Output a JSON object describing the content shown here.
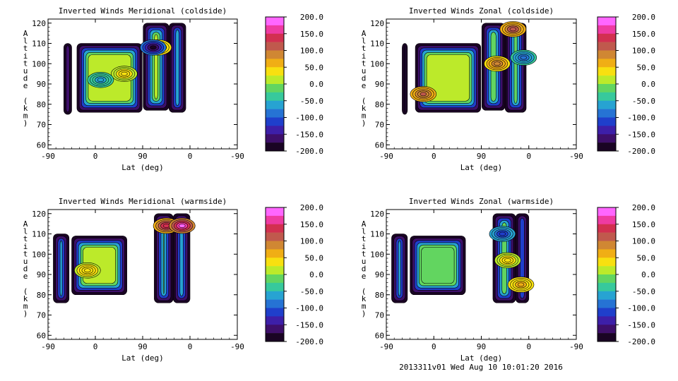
{
  "footer": "2013311v01 Wed Aug 10 10:01:20 2016",
  "colorbar": {
    "tick_labels": [
      "200.0",
      "150.0",
      "100.0",
      "50.0",
      "0.0",
      "-50.0",
      "-100.0",
      "-150.0",
      "-200.0"
    ],
    "colors_top_to_bottom": [
      "#ff66ff",
      "#ee3ba2",
      "#d23050",
      "#c0594d",
      "#d08733",
      "#f0ae15",
      "#f8e010",
      "#bcea2a",
      "#62d560",
      "#37c99c",
      "#27a3d2",
      "#2673d4",
      "#1f3fcb",
      "#3d1fa8",
      "#3e0f6a",
      "#1a0424"
    ]
  },
  "chart_data": [
    {
      "type": "heatmap",
      "title": "Inverted Winds Meridional (coldside)",
      "xlabel": "Lat (deg)",
      "ylabel": "Altitude (km)",
      "xticks": [
        "-90",
        "0",
        "90",
        "0",
        "-90"
      ],
      "yticks": [
        60,
        70,
        80,
        90,
        100,
        110,
        120
      ],
      "ylim": [
        58,
        122
      ],
      "clim": [
        -200,
        200
      ],
      "regions": [
        {
          "x": [
            -60,
            -45
          ],
          "alt": [
            75,
            110
          ],
          "mean": -190
        },
        {
          "x": [
            -35,
            89
          ],
          "alt": [
            76,
            110
          ],
          "mean": 10
        },
        {
          "x": [
            91,
            140
          ],
          "alt": [
            77,
            120
          ],
          "mean": 5
        },
        {
          "x": [
            140,
            172
          ],
          "alt": [
            76,
            120
          ],
          "mean": 30
        }
      ],
      "hotspots": [
        {
          "x": 55,
          "alt": 95,
          "value": 40
        },
        {
          "x": 10,
          "alt": 92,
          "value": -60
        },
        {
          "x": 120,
          "alt": 108,
          "value": 60
        },
        {
          "x": 110,
          "alt": 108,
          "value": -180
        }
      ]
    },
    {
      "type": "heatmap",
      "title": "Inverted Winds Zonal (coldside)",
      "xlabel": "Lat (deg)",
      "ylabel": "Altitude (km)",
      "xticks": [
        "-90",
        "0",
        "90",
        "0",
        "-90"
      ],
      "yticks": [
        60,
        70,
        80,
        90,
        100,
        110,
        120
      ],
      "ylim": [
        58,
        122
      ],
      "clim": [
        -200,
        200
      ],
      "regions": [
        {
          "x": [
            -60,
            -50
          ],
          "alt": [
            75,
            110
          ],
          "mean": -190
        },
        {
          "x": [
            -35,
            89
          ],
          "alt": [
            76,
            110
          ],
          "mean": 20
        },
        {
          "x": [
            91,
            135
          ],
          "alt": [
            77,
            120
          ],
          "mean": -10
        },
        {
          "x": [
            135,
            175
          ],
          "alt": [
            76,
            120
          ],
          "mean": 40
        }
      ],
      "hotspots": [
        {
          "x": -20,
          "alt": 85,
          "value": 110
        },
        {
          "x": 150,
          "alt": 117,
          "value": 120
        },
        {
          "x": 120,
          "alt": 100,
          "value": 100
        },
        {
          "x": 170,
          "alt": 103,
          "value": -90
        }
      ]
    },
    {
      "type": "heatmap",
      "title": "Inverted Winds Meridional (warmside)",
      "xlabel": "Lat (deg)",
      "ylabel": "Altitude (km)",
      "xticks": [
        "-90",
        "0",
        "90",
        "0",
        "-90"
      ],
      "yticks": [
        60,
        70,
        80,
        90,
        100,
        110,
        120
      ],
      "ylim": [
        58,
        122
      ],
      "clim": [
        -200,
        200
      ],
      "regions": [
        {
          "x": [
            -80,
            -50
          ],
          "alt": [
            76,
            110
          ],
          "mean": -180
        },
        {
          "x": [
            -45,
            60
          ],
          "alt": [
            80,
            109
          ],
          "mean": 10
        },
        {
          "x": [
            112,
            148
          ],
          "alt": [
            76,
            120
          ],
          "mean": 40
        },
        {
          "x": [
            148,
            180
          ],
          "alt": [
            76,
            120
          ],
          "mean": 60
        }
      ],
      "hotspots": [
        {
          "x": 135,
          "alt": 114,
          "value": 150
        },
        {
          "x": 165,
          "alt": 114,
          "value": 190
        },
        {
          "x": -15,
          "alt": 92,
          "value": 50
        }
      ]
    },
    {
      "type": "heatmap",
      "title": "Inverted Winds Zonal (warmside)",
      "xlabel": "Lat (deg)",
      "ylabel": "Altitude (km)",
      "xticks": [
        "-90",
        "0",
        "90",
        "0",
        "-90"
      ],
      "yticks": [
        60,
        70,
        80,
        90,
        100,
        110,
        120
      ],
      "ylim": [
        58,
        122
      ],
      "clim": [
        -200,
        200
      ],
      "regions": [
        {
          "x": [
            -80,
            -50
          ],
          "alt": [
            76,
            110
          ],
          "mean": -180
        },
        {
          "x": [
            -45,
            60
          ],
          "alt": [
            80,
            109
          ],
          "mean": 0
        },
        {
          "x": [
            112,
            155
          ],
          "alt": [
            76,
            120
          ],
          "mean": -60
        },
        {
          "x": [
            155,
            180
          ],
          "alt": [
            76,
            120
          ],
          "mean": 20
        }
      ],
      "hotspots": [
        {
          "x": 165,
          "alt": 85,
          "value": 60
        },
        {
          "x": 140,
          "alt": 97,
          "value": 40
        },
        {
          "x": 130,
          "alt": 110,
          "value": -120
        }
      ]
    }
  ]
}
